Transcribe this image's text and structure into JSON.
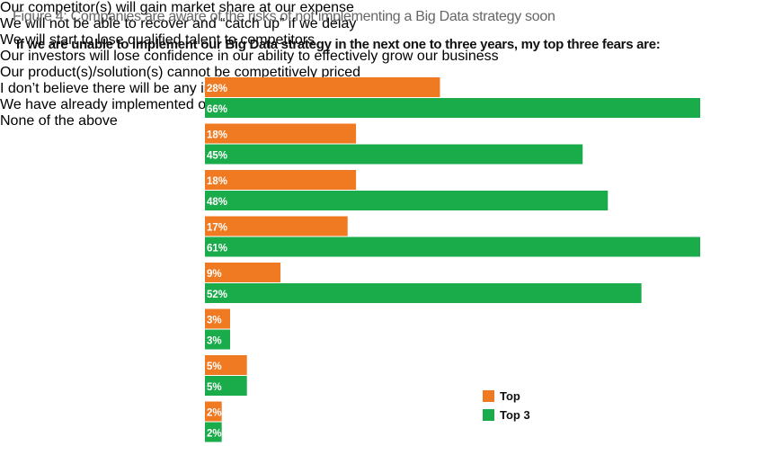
{
  "chart_data": {
    "type": "barh",
    "title": "Figure 4: Companies are aware of the risks of not implementing a Big Data strategy soon",
    "subtitle": "If we are unable to implement our Big Data strategy in the next one to three years, my top three fears are:",
    "categories": [
      "Our competitor(s) will gain market\nshare at our expense",
      "We will not be able to recover and\n“catch up” if we delay",
      "We will start to lose qualified talent\nto competitors",
      "Our investors will lose confidence in our\nability to effectively grow our business",
      "Our product(s)/solution(s) cannot be\ncompetitively priced",
      "I don’t believe there will be any\nimpact",
      "We have already implemented our\nBig Data strategy",
      "None of the above"
    ],
    "series": [
      {
        "name": "Top",
        "color": "#f07a22",
        "values": [
          28,
          18,
          18,
          17,
          9,
          3,
          5,
          2
        ],
        "value_labels": [
          "28%",
          "18%",
          "18%",
          "17%",
          "9%",
          "3%",
          "5%",
          "2%"
        ]
      },
      {
        "name": "Top 3",
        "color": "#1aab4a",
        "values": [
          66,
          45,
          48,
          61,
          52,
          3,
          5,
          2
        ],
        "value_labels": [
          "66%",
          "45%",
          "48%",
          "61%",
          "52%",
          "3%",
          "5%",
          "2%"
        ]
      }
    ],
    "xlim": [
      0,
      59
    ],
    "legend": "lower-right"
  }
}
